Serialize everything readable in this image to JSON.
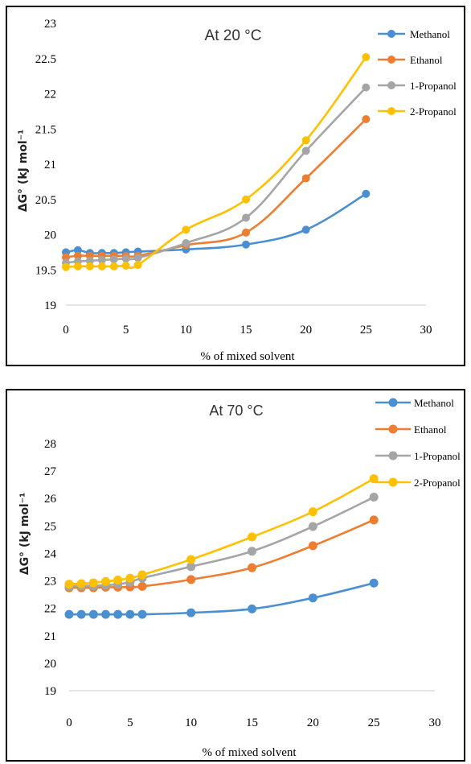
{
  "chart_data": [
    {
      "type": "line",
      "title": "At 20 °C",
      "xlabel": "% of mixed solvent",
      "ylabel": "ΔG° (kJ mol⁻¹",
      "xlim": [
        0,
        30
      ],
      "ylim": [
        19,
        23
      ],
      "xticks": [
        "0",
        "5",
        "10",
        "15",
        "20",
        "25",
        "30"
      ],
      "yticks": [
        "19",
        "19.5",
        "20",
        "20.5",
        "21",
        "21.5",
        "22",
        "22.5",
        "23"
      ],
      "grid": false,
      "legend_position": "right",
      "x": [
        0,
        1,
        2,
        3,
        4,
        5,
        6,
        10,
        15,
        20,
        25
      ],
      "series": [
        {
          "name": "Methanol",
          "color": "#4a8fd1",
          "values": [
            19.75,
            19.78,
            19.74,
            19.74,
            19.74,
            19.75,
            19.76,
            19.79,
            19.86,
            20.07,
            20.58
          ]
        },
        {
          "name": "Ethanol",
          "color": "#ed7d31",
          "values": [
            19.68,
            19.7,
            19.7,
            19.7,
            19.7,
            19.7,
            19.7,
            19.85,
            20.03,
            20.8,
            21.64
          ]
        },
        {
          "name": "1-Propanol",
          "color": "#a5a5a5",
          "values": [
            19.6,
            19.62,
            19.63,
            19.64,
            19.65,
            19.66,
            19.67,
            19.88,
            20.24,
            21.19,
            22.09
          ]
        },
        {
          "name": "2-Propanol",
          "color": "#ffc000",
          "values": [
            19.54,
            19.55,
            19.55,
            19.55,
            19.55,
            19.56,
            19.57,
            20.07,
            20.5,
            21.34,
            22.52
          ]
        }
      ]
    },
    {
      "type": "line",
      "title": "At 70 °C",
      "xlabel": "% of mixed solvent",
      "ylabel": "ΔG° (kJ mol⁻¹",
      "xlim": [
        0,
        30
      ],
      "ylim": [
        19,
        28
      ],
      "xticks": [
        "0",
        "5",
        "10",
        "15",
        "20",
        "25",
        "30"
      ],
      "yticks": [
        "19",
        "20",
        "21",
        "22",
        "23",
        "24",
        "25",
        "26",
        "27",
        "28"
      ],
      "grid": false,
      "legend_position": "top-right",
      "x": [
        0,
        1,
        2,
        3,
        4,
        5,
        6,
        10,
        15,
        20,
        25
      ],
      "series": [
        {
          "name": "Methanol",
          "color": "#4a8fd1",
          "values": [
            21.78,
            21.78,
            21.78,
            21.78,
            21.78,
            21.78,
            21.78,
            21.84,
            21.98,
            22.38,
            22.92
          ]
        },
        {
          "name": "Ethanol",
          "color": "#ed7d31",
          "values": [
            22.75,
            22.75,
            22.75,
            22.77,
            22.77,
            22.78,
            22.8,
            23.05,
            23.48,
            24.28,
            25.22
          ]
        },
        {
          "name": "1-Propanol",
          "color": "#a5a5a5",
          "values": [
            22.8,
            22.82,
            22.82,
            22.84,
            22.88,
            22.95,
            23.1,
            23.52,
            24.08,
            24.98,
            26.05
          ]
        },
        {
          "name": "2-Propanol",
          "color": "#ffc000",
          "values": [
            22.88,
            22.9,
            22.93,
            22.98,
            23.03,
            23.1,
            23.22,
            23.78,
            24.6,
            25.52,
            26.72
          ]
        }
      ]
    }
  ]
}
